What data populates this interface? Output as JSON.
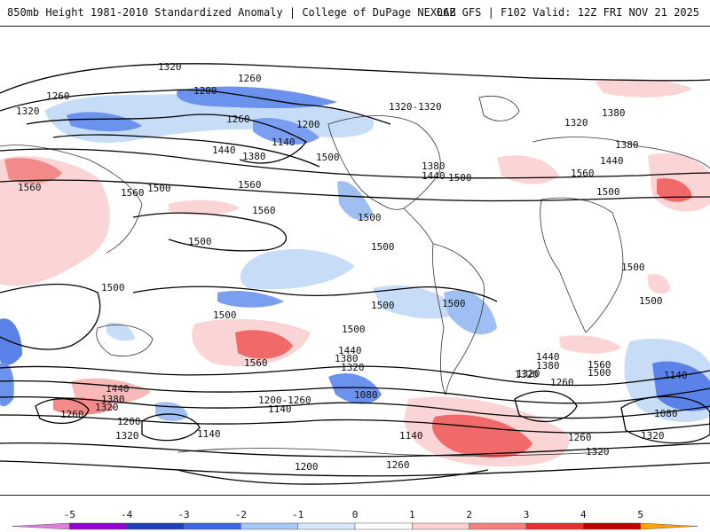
{
  "header": {
    "left": "850mb Height 1981-2010 Standardized Anomaly | College of DuPage NEXLAB",
    "right": "06Z GFS | F102 Valid: 12Z FRI NOV 21 2025"
  },
  "colorbar": {
    "ticks": [
      "-5",
      "-4",
      "-3",
      "-2",
      "-1",
      "0",
      "1",
      "2",
      "3",
      "4",
      "5"
    ],
    "colors": [
      "#e07ee0",
      "#9400d3",
      "#1e3fb8",
      "#3d66e8",
      "#a8c8f5",
      "#d8e8fb",
      "#ffffff",
      "#fbd0d0",
      "#f58080",
      "#e83030",
      "#c00000",
      "#ffa500"
    ]
  },
  "contour_labels": [
    "1320",
    "1260",
    "1200",
    "1260",
    "1320",
    "1320-1320",
    "1380",
    "1320",
    "1200",
    "1260",
    "1140",
    "1440",
    "1380",
    "1500",
    "1560",
    "1560",
    "1500",
    "1560",
    "1560",
    "1380",
    "1440",
    "1500",
    "1380",
    "1440",
    "1560",
    "1500",
    "1500",
    "1500",
    "1500",
    "1500",
    "1500",
    "1500",
    "1500",
    "1500",
    "1500",
    "1500",
    "1560",
    "1440",
    "1380",
    "1320",
    "1440",
    "1380",
    "1320",
    "1200-1260",
    "1140",
    "1080",
    "1440",
    "1380",
    "1320",
    "1560",
    "1500",
    "1320",
    "1260",
    "1140",
    "1080",
    "1260",
    "1200",
    "1320",
    "1140",
    "1140",
    "1200",
    "1260",
    "1260",
    "1320",
    "1320"
  ]
}
